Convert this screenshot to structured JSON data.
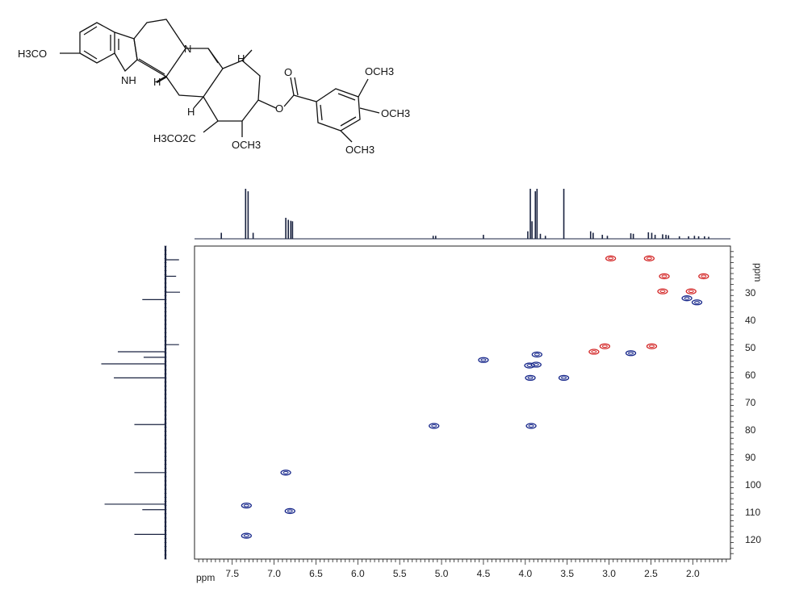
{
  "structure": {
    "labels": {
      "methoxy_left": "H3CO",
      "nh": "NH",
      "n": "N",
      "h_top": "H",
      "h_left": "H",
      "h_bottom": "H",
      "carbonyl_o": "O",
      "ester_o": "O",
      "ester_group": "H3CO2C",
      "ring_methoxy": "OCH3",
      "aryl_och3_top": "OCH3",
      "aryl_och3_mid": "OCH3",
      "aryl_och3_bottom": "OCH3"
    }
  },
  "chart_data": {
    "type": "scatter",
    "subtype": "2D NMR HSQC contour plot with 1D projections",
    "x_axis": {
      "label": "ppm",
      "reversed": true,
      "range": [
        7.95,
        1.55
      ],
      "ticks": [
        7.5,
        7.0,
        6.5,
        6.0,
        5.5,
        5.0,
        4.5,
        4.0,
        3.5,
        3.0,
        2.5,
        2.0
      ],
      "tick_labels": [
        "7.5",
        "7.0",
        "6.5",
        "6.0",
        "5.5",
        "5.0",
        "4.5",
        "4.0",
        "3.5",
        "3.0",
        "2.5",
        "2.0"
      ]
    },
    "y_axis": {
      "label": "ppm",
      "range": [
        13,
        127
      ],
      "ticks": [
        30,
        40,
        50,
        60,
        70,
        80,
        90,
        100,
        110,
        120
      ],
      "tick_labels": [
        "30",
        "40",
        "50",
        "60",
        "70",
        "80",
        "90",
        "100",
        "110",
        "120"
      ]
    },
    "colors": {
      "positive": "#1a2a8c",
      "negative": "#d42a2a",
      "spectrum": "#1a2340",
      "axis": "#222222"
    },
    "series": [
      {
        "phase": "positive",
        "points": [
          {
            "x": 7.33,
            "y": 107.5
          },
          {
            "x": 7.33,
            "y": 118.5
          },
          {
            "x": 6.86,
            "y": 95.5
          },
          {
            "x": 6.81,
            "y": 109.5
          },
          {
            "x": 5.09,
            "y": 78.5
          },
          {
            "x": 4.5,
            "y": 54.5
          },
          {
            "x": 3.95,
            "y": 56.5
          },
          {
            "x": 3.94,
            "y": 61.0
          },
          {
            "x": 3.93,
            "y": 78.5
          },
          {
            "x": 3.87,
            "y": 56.2
          },
          {
            "x": 3.86,
            "y": 52.5
          },
          {
            "x": 3.54,
            "y": 61.0
          },
          {
            "x": 2.74,
            "y": 52.0
          },
          {
            "x": 2.07,
            "y": 32.0
          },
          {
            "x": 1.95,
            "y": 33.5
          }
        ]
      },
      {
        "phase": "negative",
        "points": [
          {
            "x": 2.98,
            "y": 17.5
          },
          {
            "x": 2.52,
            "y": 17.5
          },
          {
            "x": 2.34,
            "y": 24.0
          },
          {
            "x": 1.87,
            "y": 24.0
          },
          {
            "x": 2.36,
            "y": 29.5
          },
          {
            "x": 2.02,
            "y": 29.5
          },
          {
            "x": 3.18,
            "y": 51.5
          },
          {
            "x": 3.05,
            "y": 49.5
          },
          {
            "x": 2.49,
            "y": 49.5
          }
        ]
      }
    ],
    "projection_1h": [
      {
        "ppm": 7.63,
        "h": 0.12
      },
      {
        "ppm": 7.34,
        "h": 1.0
      },
      {
        "ppm": 7.31,
        "h": 0.95
      },
      {
        "ppm": 7.25,
        "h": 0.12
      },
      {
        "ppm": 6.86,
        "h": 0.42
      },
      {
        "ppm": 6.83,
        "h": 0.38
      },
      {
        "ppm": 6.8,
        "h": 0.36
      },
      {
        "ppm": 6.78,
        "h": 0.35
      },
      {
        "ppm": 5.1,
        "h": 0.06
      },
      {
        "ppm": 5.07,
        "h": 0.06
      },
      {
        "ppm": 4.5,
        "h": 0.08
      },
      {
        "ppm": 3.97,
        "h": 0.15
      },
      {
        "ppm": 3.94,
        "h": 1.0
      },
      {
        "ppm": 3.92,
        "h": 0.35
      },
      {
        "ppm": 3.88,
        "h": 0.95
      },
      {
        "ppm": 3.86,
        "h": 1.0
      },
      {
        "ppm": 3.82,
        "h": 0.1
      },
      {
        "ppm": 3.76,
        "h": 0.06
      },
      {
        "ppm": 3.54,
        "h": 1.0
      },
      {
        "ppm": 3.22,
        "h": 0.15
      },
      {
        "ppm": 3.19,
        "h": 0.12
      },
      {
        "ppm": 3.08,
        "h": 0.08
      },
      {
        "ppm": 3.02,
        "h": 0.06
      },
      {
        "ppm": 2.74,
        "h": 0.11
      },
      {
        "ppm": 2.71,
        "h": 0.1
      },
      {
        "ppm": 2.53,
        "h": 0.13
      },
      {
        "ppm": 2.49,
        "h": 0.12
      },
      {
        "ppm": 2.45,
        "h": 0.08
      },
      {
        "ppm": 2.36,
        "h": 0.09
      },
      {
        "ppm": 2.32,
        "h": 0.08
      },
      {
        "ppm": 2.29,
        "h": 0.07
      },
      {
        "ppm": 2.16,
        "h": 0.05
      },
      {
        "ppm": 2.05,
        "h": 0.05
      },
      {
        "ppm": 1.98,
        "h": 0.06
      },
      {
        "ppm": 1.93,
        "h": 0.05
      },
      {
        "ppm": 1.86,
        "h": 0.05
      },
      {
        "ppm": 1.81,
        "h": 0.04
      }
    ],
    "projection_13c": [
      {
        "ppm": 18.0,
        "h": 0.42,
        "sign": 1
      },
      {
        "ppm": 24.0,
        "h": 0.33,
        "sign": 1
      },
      {
        "ppm": 29.8,
        "h": 0.45,
        "sign": 1
      },
      {
        "ppm": 32.5,
        "h": 0.35,
        "sign": -1
      },
      {
        "ppm": 48.9,
        "h": 0.42,
        "sign": 1
      },
      {
        "ppm": 51.5,
        "h": 0.72,
        "sign": -1
      },
      {
        "ppm": 53.5,
        "h": 0.33,
        "sign": -1
      },
      {
        "ppm": 55.9,
        "h": 0.97,
        "sign": -1
      },
      {
        "ppm": 61.0,
        "h": 0.78,
        "sign": -1
      },
      {
        "ppm": 78.0,
        "h": 0.47,
        "sign": -1
      },
      {
        "ppm": 95.5,
        "h": 0.47,
        "sign": -1
      },
      {
        "ppm": 107.0,
        "h": 0.92,
        "sign": -1
      },
      {
        "ppm": 109.0,
        "h": 0.35,
        "sign": -1
      },
      {
        "ppm": 118.0,
        "h": 0.47,
        "sign": -1
      }
    ]
  }
}
